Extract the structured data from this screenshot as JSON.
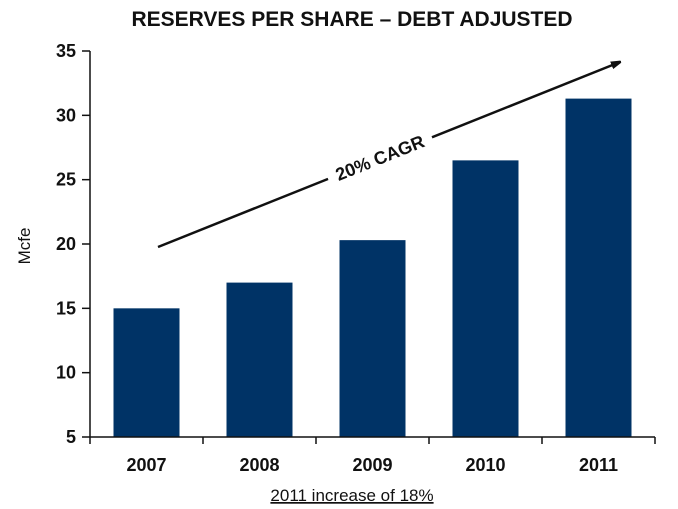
{
  "chart_data": {
    "type": "bar",
    "title": "RESERVES PER SHARE – DEBT ADJUSTED",
    "ylabel": "Mcfe",
    "xlabel": "",
    "categories": [
      "2007",
      "2008",
      "2009",
      "2010",
      "2011"
    ],
    "values": [
      15.0,
      17.0,
      20.3,
      26.5,
      31.3
    ],
    "ylim": [
      5,
      35
    ],
    "yticks": [
      "5",
      "10",
      "15",
      "20",
      "25",
      "30",
      "35"
    ],
    "grid": false,
    "annotation": "20% CAGR",
    "footnote": "2011 increase of 18%",
    "colors": {
      "bar": "#003366",
      "axis": "#111111",
      "arrow": "#111111"
    }
  }
}
